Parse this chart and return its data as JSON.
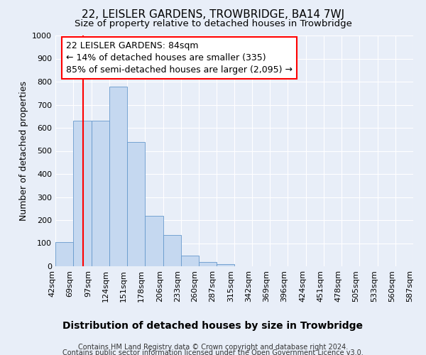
{
  "title": "22, LEISLER GARDENS, TROWBRIDGE, BA14 7WJ",
  "subtitle": "Size of property relative to detached houses in Trowbridge",
  "xlabel": "Distribution of detached houses by size in Trowbridge",
  "ylabel": "Number of detached properties",
  "bin_edges": [
    42,
    69,
    97,
    124,
    151,
    178,
    206,
    233,
    260,
    287,
    315,
    342,
    369,
    396,
    424,
    451,
    478,
    505,
    533,
    560,
    587
  ],
  "bar_heights": [
    105,
    630,
    630,
    780,
    540,
    220,
    135,
    45,
    20,
    10,
    0,
    0,
    0,
    0,
    0,
    0,
    0,
    0,
    0,
    0
  ],
  "bar_color": "#c5d8f0",
  "bar_edge_color": "#6699cc",
  "red_line_x": 84,
  "ylim": [
    0,
    1000
  ],
  "yticks": [
    0,
    100,
    200,
    300,
    400,
    500,
    600,
    700,
    800,
    900,
    1000
  ],
  "annotation_line1": "22 LEISLER GARDENS: 84sqm",
  "annotation_line2": "← 14% of detached houses are smaller (335)",
  "annotation_line3": "85% of semi-detached houses are larger (2,095) →",
  "footer_line1": "Contains HM Land Registry data © Crown copyright and database right 2024.",
  "footer_line2": "Contains public sector information licensed under the Open Government Licence v3.0.",
  "background_color": "#e8eef8",
  "grid_color": "#ffffff",
  "title_fontsize": 11,
  "subtitle_fontsize": 9.5,
  "ylabel_fontsize": 9,
  "xlabel_fontsize": 10,
  "tick_fontsize": 8,
  "annotation_fontsize": 9,
  "footer_fontsize": 7
}
